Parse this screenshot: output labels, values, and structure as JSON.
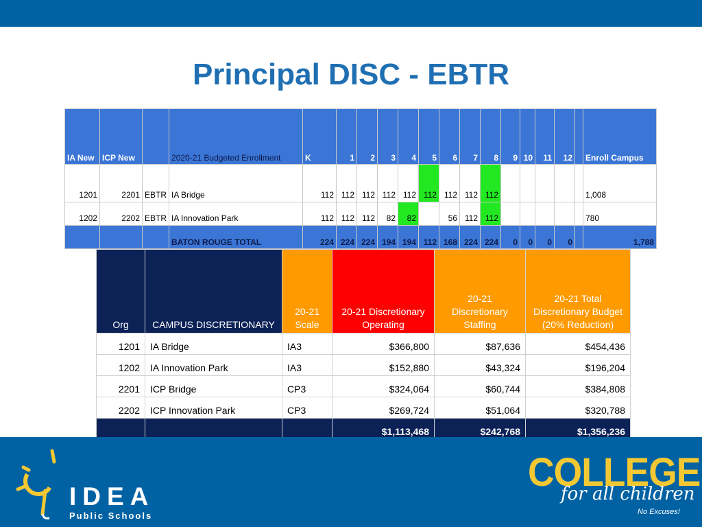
{
  "title": "Principal DISC - EBTR",
  "enrollment": {
    "headers": [
      "IA New",
      "ICP New",
      "",
      "2020-21 Budgeted Enrollment",
      "K",
      "1",
      "2",
      "3",
      "4",
      "5",
      "6",
      "7",
      "8",
      "9",
      "10",
      "11",
      "12",
      "",
      "Enroll Campus"
    ],
    "rows": [
      [
        "1201",
        "2201",
        "EBTR",
        "IA Bridge",
        "112",
        "112",
        "112",
        "112",
        "112",
        "112",
        "112",
        "112",
        "112",
        "",
        "",
        "",
        "",
        "",
        "1,008"
      ],
      [
        "1202",
        "2202",
        "EBTR",
        "IA Innovation Park",
        "112",
        "112",
        "112",
        "82",
        "82",
        "",
        "56",
        "112",
        "112",
        "",
        "",
        "",
        "",
        "",
        "780"
      ]
    ],
    "total": [
      "",
      "",
      "",
      "BATON ROUGE TOTAL",
      "224",
      "224",
      "224",
      "194",
      "194",
      "112",
      "168",
      "224",
      "224",
      "0",
      "0",
      "0",
      "0",
      "",
      "1,788"
    ],
    "highlight_color": "#22e822"
  },
  "discretionary": {
    "headers": [
      "Org",
      "CAMPUS DISCRETIONARY",
      "20-21 Scale",
      "20-21 Discretionary Operating",
      "20-21 Discretionary Staffing",
      "20-21 Total Discretionary Budget (20% Reduction)"
    ],
    "rows": [
      [
        "1201",
        "IA Bridge",
        "IA3",
        "$366,800",
        "$87,636",
        "$454,436"
      ],
      [
        "1202",
        "IA Innovation Park",
        "IA3",
        "$152,880",
        "$43,324",
        "$196,204"
      ],
      [
        "2201",
        "ICP Bridge",
        "CP3",
        "$324,064",
        "$60,744",
        "$384,808"
      ],
      [
        "2202",
        "ICP Innovation Park",
        "CP3",
        "$269,724",
        "$51,064",
        "$320,788"
      ]
    ],
    "total": [
      "",
      "",
      "",
      "$1,113,468",
      "$242,768",
      "$1,356,236"
    ]
  },
  "footer": {
    "idea_logo": "IDEA",
    "idea_sub": "Public Schools",
    "college_word": "COLLEGE",
    "college_tag": "for all children",
    "college_sub": "No Excuses!"
  },
  "colors": {
    "brand_blue": "#0062a3",
    "title_blue": "#1f6fb2",
    "header_blue": "#3b76d6",
    "navy": "#0c2257",
    "orange": "#ff9a00",
    "red": "#ff0000",
    "gold": "#f4c832"
  }
}
